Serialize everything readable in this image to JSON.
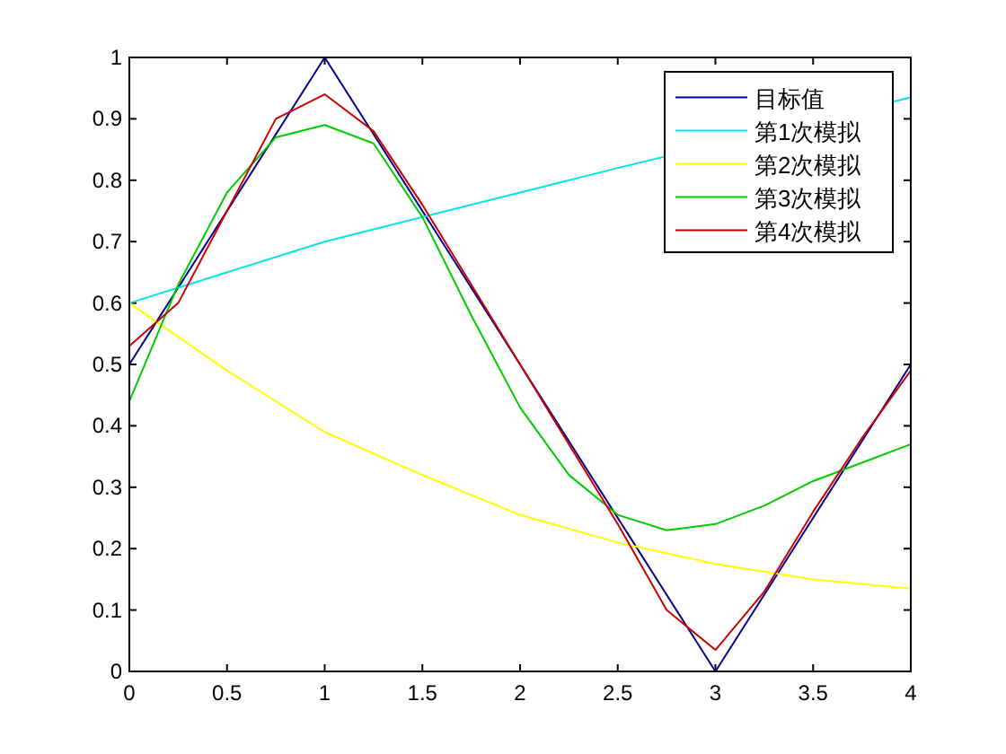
{
  "chart_data": {
    "type": "line",
    "x": [
      0,
      1,
      3,
      4
    ],
    "series": [
      {
        "name": "目标值",
        "color": "#00008b",
        "values": [
          0.5,
          1,
          0,
          0.5
        ]
      },
      {
        "name": "第1次模拟",
        "color": "#00e5e5",
        "x": [
          0,
          1,
          2,
          2.5,
          4
        ],
        "values": [
          0.6,
          0.7,
          0.78,
          0.82,
          0.935
        ]
      },
      {
        "name": "第2次模拟",
        "color": "#ffff00",
        "x": [
          0,
          0.5,
          1,
          1.5,
          2,
          2.5,
          3,
          3.5,
          4
        ],
        "values": [
          0.6,
          0.49,
          0.39,
          0.32,
          0.255,
          0.21,
          0.175,
          0.15,
          0.135
        ]
      },
      {
        "name": "第3次模拟",
        "color": "#00cc00",
        "x": [
          0,
          0.25,
          0.5,
          0.75,
          1,
          1.25,
          1.5,
          1.75,
          2,
          2.25,
          2.5,
          2.75,
          3,
          3.25,
          3.5,
          3.75,
          4
        ],
        "values": [
          0.44,
          0.63,
          0.78,
          0.87,
          0.89,
          0.86,
          0.74,
          0.58,
          0.43,
          0.32,
          0.255,
          0.23,
          0.24,
          0.27,
          0.31,
          0.34,
          0.37
        ]
      },
      {
        "name": "第4次模拟",
        "color": "#cc0000",
        "x": [
          0,
          0.25,
          0.5,
          0.75,
          1,
          1.25,
          1.5,
          1.75,
          2,
          2.25,
          2.5,
          2.75,
          3,
          3.25,
          3.5,
          3.75,
          4
        ],
        "values": [
          0.53,
          0.6,
          0.75,
          0.9,
          0.94,
          0.88,
          0.76,
          0.63,
          0.5,
          0.37,
          0.24,
          0.1,
          0.035,
          0.13,
          0.26,
          0.38,
          0.49
        ]
      }
    ],
    "xlim": [
      0,
      4
    ],
    "xticks": [
      0,
      0.5,
      1,
      1.5,
      2,
      2.5,
      3,
      3.5,
      4
    ],
    "ylim": [
      0,
      1
    ],
    "yticks": [
      0,
      0.1,
      0.2,
      0.3,
      0.4,
      0.5,
      0.6,
      0.7,
      0.8,
      0.9,
      1
    ],
    "legend": "top right",
    "grid": false
  }
}
